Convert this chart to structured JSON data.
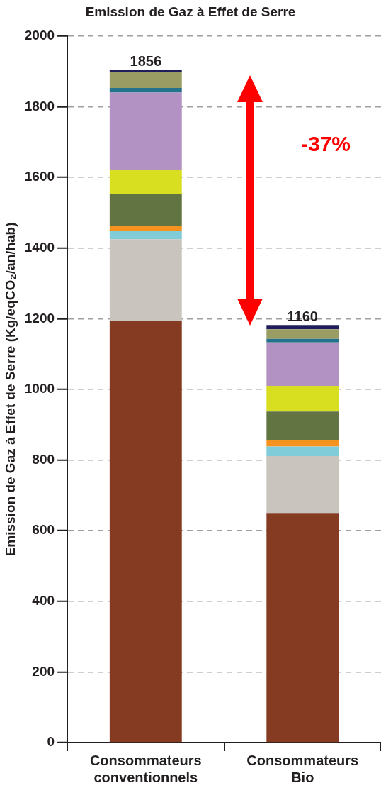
{
  "chart_data": {
    "type": "bar",
    "stacked": true,
    "title": "Emission de Gaz à Effet de Serre",
    "ylabel": "Emission de Gaz à Effet de Serre (Kg/eqCO₂/an/hab)",
    "categories": [
      "Consommateurs conventionnels",
      "Consommateurs Bio"
    ],
    "series": [
      {
        "color": "#843b22",
        "values": [
          1193,
          650
        ]
      },
      {
        "color": "#c9c4bd",
        "values": [
          232,
          161
        ]
      },
      {
        "color": "#80ccd9",
        "values": [
          24,
          27
        ]
      },
      {
        "color": "#f6921e",
        "values": [
          13,
          18
        ]
      },
      {
        "color": "#627441",
        "values": [
          92,
          81
        ]
      },
      {
        "color": "#d7df20",
        "values": [
          67,
          73
        ]
      },
      {
        "color": "#b292c2",
        "values": [
          219,
          123
        ]
      },
      {
        "color": "#24728a",
        "values": [
          13,
          10
        ]
      },
      {
        "color": "#9a9d63",
        "values": [
          45,
          27
        ]
      },
      {
        "color": "#1f1d5c",
        "values": [
          6,
          12
        ]
      }
    ],
    "annotations": [
      {
        "text": "1856",
        "x": "Consommateurs conventionnels",
        "y": 1904
      },
      {
        "text": "1160",
        "x": "Consommateurs Bio",
        "y": 1182
      },
      "-37%"
    ],
    "ylim": [
      0,
      2000
    ],
    "yticks": [
      0,
      200,
      400,
      600,
      800,
      1000,
      1200,
      1400,
      1600,
      1800,
      2000
    ],
    "grid": "y",
    "legend": false
  }
}
